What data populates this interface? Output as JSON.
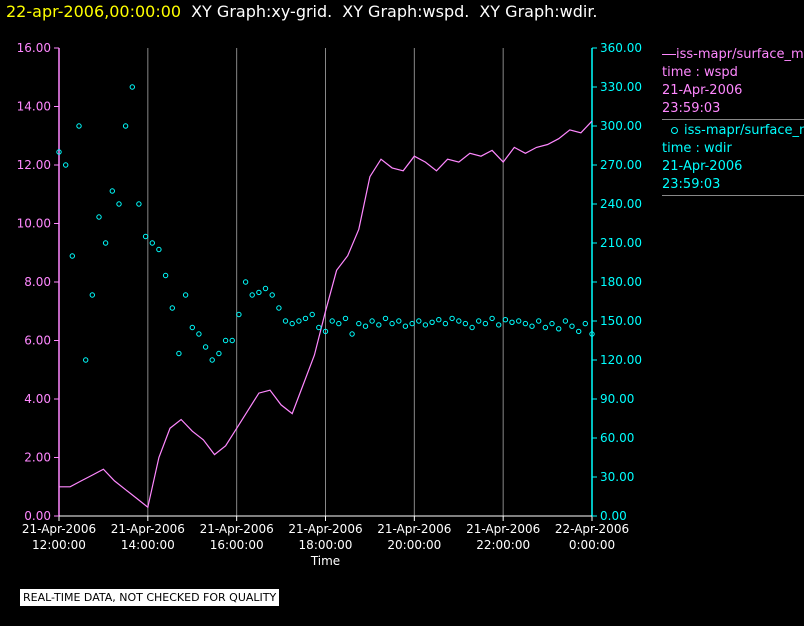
{
  "header": {
    "timestamp": "22-apr-2006,00:00:00",
    "graphs": [
      "XY Graph:xy-grid.",
      "XY Graph:wspd.",
      "XY Graph:wdir."
    ]
  },
  "legend": {
    "wspd": {
      "name": "iss-mapr/surface_m",
      "field": "time : wspd",
      "date": "21-Apr-2006",
      "time": "23:59:03"
    },
    "wdir": {
      "name": "iss-mapr/surface_m",
      "field": "time : wdir",
      "date": "21-Apr-2006",
      "time": "23:59:03"
    }
  },
  "notice": "REAL-TIME DATA, NOT CHECKED FOR QUALITY",
  "colors": {
    "wspd": "#ff88ff",
    "wdir": "#00ffff",
    "axis_left": "#ff88ff",
    "axis_right": "#00ffff",
    "grid": "#888888",
    "timestamp": "#ffff00"
  },
  "chart_data": {
    "type": "line",
    "xlabel": "Time",
    "x_ticks": [
      {
        "line1": "21-Apr-2006",
        "line2": "12:00:00"
      },
      {
        "line1": "21-Apr-2006",
        "line2": "14:00:00"
      },
      {
        "line1": "21-Apr-2006",
        "line2": "16:00:00"
      },
      {
        "line1": "21-Apr-2006",
        "line2": "18:00:00"
      },
      {
        "line1": "21-Apr-2006",
        "line2": "20:00:00"
      },
      {
        "line1": "21-Apr-2006",
        "line2": "22:00:00"
      },
      {
        "line1": "22-Apr-2006",
        "line2": "0:00:00"
      }
    ],
    "x_range_hours": [
      0,
      12
    ],
    "left_axis": {
      "ylim": [
        0,
        16
      ],
      "ticks": [
        "0.00",
        "2.00",
        "4.00",
        "6.00",
        "8.00",
        "10.00",
        "12.00",
        "14.00",
        "16.00"
      ]
    },
    "right_axis": {
      "ylim": [
        0,
        360
      ],
      "ticks": [
        "0.00",
        "30.00",
        "60.00",
        "90.00",
        "120.00",
        "150.00",
        "180.00",
        "210.00",
        "240.00",
        "270.00",
        "300.00",
        "330.00",
        "360.00"
      ]
    },
    "grid": "vertical lines at x ticks",
    "series": [
      {
        "name": "iss-mapr/surface_m time : wspd",
        "style": "line",
        "axis": "left",
        "x_hours": [
          0,
          0.25,
          0.5,
          0.75,
          1,
          1.25,
          1.5,
          1.75,
          2,
          2.25,
          2.5,
          2.75,
          3,
          3.25,
          3.5,
          3.75,
          4,
          4.25,
          4.5,
          4.75,
          5,
          5.25,
          5.5,
          5.75,
          6,
          6.25,
          6.5,
          6.75,
          7,
          7.25,
          7.5,
          7.75,
          8,
          8.25,
          8.5,
          8.75,
          9,
          9.25,
          9.5,
          9.75,
          10,
          10.25,
          10.5,
          10.75,
          11,
          11.25,
          11.5,
          11.75,
          12
        ],
        "values": [
          1.0,
          1.0,
          1.2,
          1.4,
          1.6,
          1.2,
          0.9,
          0.6,
          0.3,
          2.0,
          3.0,
          3.3,
          2.9,
          2.6,
          2.1,
          2.4,
          3.0,
          3.6,
          4.2,
          4.3,
          3.8,
          3.5,
          4.5,
          5.5,
          7.0,
          8.4,
          8.9,
          9.8,
          11.6,
          12.2,
          11.9,
          11.8,
          12.3,
          12.1,
          11.8,
          12.2,
          12.1,
          12.4,
          12.3,
          12.5,
          12.1,
          12.6,
          12.4,
          12.6,
          12.7,
          12.9,
          13.2,
          13.1,
          13.5
        ]
      },
      {
        "name": "iss-mapr/surface_m time : wdir",
        "style": "scatter",
        "axis": "right",
        "x_hours": [
          0,
          0.15,
          0.3,
          0.45,
          0.6,
          0.75,
          0.9,
          1.05,
          1.2,
          1.35,
          1.5,
          1.65,
          1.8,
          1.95,
          2.1,
          2.25,
          2.4,
          2.55,
          2.7,
          2.85,
          3.0,
          3.15,
          3.3,
          3.45,
          3.6,
          3.75,
          3.9,
          4.05,
          4.2,
          4.35,
          4.5,
          4.65,
          4.8,
          4.95,
          5.1,
          5.25,
          5.4,
          5.55,
          5.7,
          5.85,
          6.0,
          6.15,
          6.3,
          6.45,
          6.6,
          6.75,
          6.9,
          7.05,
          7.2,
          7.35,
          7.5,
          7.65,
          7.8,
          7.95,
          8.1,
          8.25,
          8.4,
          8.55,
          8.7,
          8.85,
          9.0,
          9.15,
          9.3,
          9.45,
          9.6,
          9.75,
          9.9,
          10.05,
          10.2,
          10.35,
          10.5,
          10.65,
          10.8,
          10.95,
          11.1,
          11.25,
          11.4,
          11.55,
          11.7,
          11.85,
          12.0
        ],
        "values": [
          280,
          270,
          200,
          300,
          120,
          170,
          230,
          210,
          250,
          240,
          300,
          330,
          240,
          215,
          210,
          205,
          185,
          160,
          125,
          170,
          145,
          140,
          130,
          120,
          125,
          135,
          135,
          155,
          180,
          170,
          172,
          175,
          170,
          160,
          150,
          148,
          150,
          152,
          155,
          145,
          142,
          150,
          148,
          152,
          140,
          148,
          146,
          150,
          147,
          152,
          148,
          150,
          146,
          148,
          150,
          147,
          149,
          151,
          148,
          152,
          150,
          148,
          145,
          150,
          148,
          152,
          147,
          151,
          149,
          150,
          148,
          146,
          150,
          145,
          148,
          144,
          150,
          146,
          142,
          148,
          140
        ]
      }
    ]
  }
}
